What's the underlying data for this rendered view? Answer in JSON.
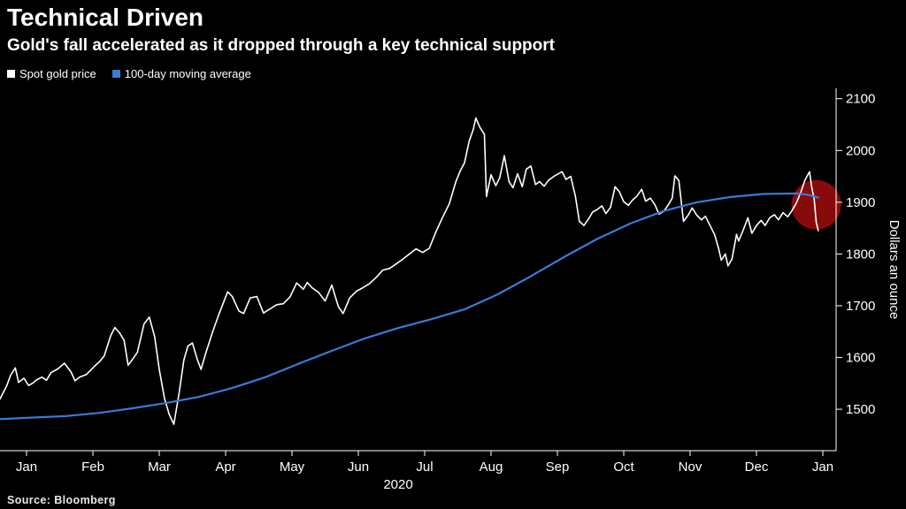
{
  "header": {
    "title": "Technical Driven",
    "subtitle": "Gold's fall accelerated as it dropped through a key technical support"
  },
  "legend": [
    {
      "label": "Spot gold price",
      "color": "#ffffff"
    },
    {
      "label": "100-day moving average",
      "color": "#3a7bd5"
    }
  ],
  "source_label": "Source: Bloomberg",
  "chart_data": {
    "type": "line",
    "title": "Technical Driven",
    "subtitle": "Gold's fall accelerated as it dropped through a key technical support",
    "ylabel": "Dollars an ounce",
    "x_axis_note": "x in months since Jan 1 2020 (0 = Jan 2020, 12 = Jan 2021)",
    "xlim": [
      0,
      12.6
    ],
    "ylim": [
      1420,
      2120
    ],
    "background": "#000000",
    "axis_color": "#ffffff",
    "grid": false,
    "legend_position": "top-left",
    "y_ticks": [
      1500,
      1600,
      1700,
      1800,
      1900,
      2000,
      2100
    ],
    "x_ticks": [
      {
        "pos": 0.4,
        "label": "Jan"
      },
      {
        "pos": 1.4,
        "label": "Feb"
      },
      {
        "pos": 2.4,
        "label": "Mar"
      },
      {
        "pos": 3.4,
        "label": "Apr"
      },
      {
        "pos": 4.4,
        "label": "May"
      },
      {
        "pos": 5.4,
        "label": "Jun"
      },
      {
        "pos": 6.4,
        "label": "Jul"
      },
      {
        "pos": 7.4,
        "label": "Aug"
      },
      {
        "pos": 8.4,
        "label": "Sep"
      },
      {
        "pos": 9.4,
        "label": "Oct"
      },
      {
        "pos": 10.4,
        "label": "Nov"
      },
      {
        "pos": 11.4,
        "label": "Dec"
      },
      {
        "pos": 12.4,
        "label": "Jan"
      }
    ],
    "year_label": {
      "text": "2020",
      "pos": 6.0
    },
    "annotation": {
      "type": "circle",
      "name": "technical-break-highlight",
      "x": 12.3,
      "y": 1895,
      "radius_px": 28,
      "color": "#9b0c0c",
      "opacity": 0.88
    },
    "series": [
      {
        "name": "Spot gold price",
        "color": "#ffffff",
        "stroke_width": 1.6,
        "points": [
          [
            0.0,
            1520
          ],
          [
            0.1,
            1545
          ],
          [
            0.16,
            1566
          ],
          [
            0.23,
            1580
          ],
          [
            0.28,
            1552
          ],
          [
            0.36,
            1560
          ],
          [
            0.43,
            1546
          ],
          [
            0.5,
            1551
          ],
          [
            0.55,
            1557
          ],
          [
            0.63,
            1562
          ],
          [
            0.7,
            1556
          ],
          [
            0.77,
            1571
          ],
          [
            0.87,
            1578
          ],
          [
            0.97,
            1589
          ],
          [
            1.07,
            1572
          ],
          [
            1.13,
            1555
          ],
          [
            1.2,
            1562
          ],
          [
            1.3,
            1567
          ],
          [
            1.43,
            1584
          ],
          [
            1.5,
            1592
          ],
          [
            1.57,
            1603
          ],
          [
            1.67,
            1643
          ],
          [
            1.73,
            1658
          ],
          [
            1.8,
            1648
          ],
          [
            1.87,
            1633
          ],
          [
            1.93,
            1585
          ],
          [
            2.0,
            1597
          ],
          [
            2.07,
            1610
          ],
          [
            2.17,
            1665
          ],
          [
            2.25,
            1678
          ],
          [
            2.33,
            1640
          ],
          [
            2.4,
            1577
          ],
          [
            2.48,
            1520
          ],
          [
            2.55,
            1490
          ],
          [
            2.62,
            1471
          ],
          [
            2.7,
            1532
          ],
          [
            2.77,
            1595
          ],
          [
            2.83,
            1622
          ],
          [
            2.9,
            1628
          ],
          [
            2.97,
            1597
          ],
          [
            3.03,
            1577
          ],
          [
            3.1,
            1608
          ],
          [
            3.2,
            1648
          ],
          [
            3.3,
            1684
          ],
          [
            3.43,
            1727
          ],
          [
            3.5,
            1718
          ],
          [
            3.6,
            1690
          ],
          [
            3.67,
            1685
          ],
          [
            3.77,
            1715
          ],
          [
            3.87,
            1718
          ],
          [
            3.97,
            1686
          ],
          [
            4.07,
            1694
          ],
          [
            4.17,
            1702
          ],
          [
            4.27,
            1704
          ],
          [
            4.37,
            1717
          ],
          [
            4.47,
            1744
          ],
          [
            4.57,
            1732
          ],
          [
            4.63,
            1745
          ],
          [
            4.7,
            1735
          ],
          [
            4.8,
            1726
          ],
          [
            4.9,
            1709
          ],
          [
            5.0,
            1740
          ],
          [
            5.1,
            1698
          ],
          [
            5.17,
            1685
          ],
          [
            5.27,
            1715
          ],
          [
            5.37,
            1728
          ],
          [
            5.47,
            1735
          ],
          [
            5.57,
            1743
          ],
          [
            5.67,
            1755
          ],
          [
            5.77,
            1769
          ],
          [
            5.87,
            1772
          ],
          [
            5.97,
            1781
          ],
          [
            6.07,
            1790
          ],
          [
            6.17,
            1800
          ],
          [
            6.27,
            1810
          ],
          [
            6.37,
            1803
          ],
          [
            6.47,
            1811
          ],
          [
            6.57,
            1843
          ],
          [
            6.67,
            1871
          ],
          [
            6.77,
            1897
          ],
          [
            6.87,
            1940
          ],
          [
            6.93,
            1959
          ],
          [
            7.0,
            1976
          ],
          [
            7.07,
            2018
          ],
          [
            7.13,
            2040
          ],
          [
            7.17,
            2063
          ],
          [
            7.23,
            2045
          ],
          [
            7.3,
            2031
          ],
          [
            7.33,
            1911
          ],
          [
            7.4,
            1953
          ],
          [
            7.47,
            1932
          ],
          [
            7.53,
            1947
          ],
          [
            7.6,
            1990
          ],
          [
            7.67,
            1940
          ],
          [
            7.73,
            1928
          ],
          [
            7.8,
            1955
          ],
          [
            7.87,
            1930
          ],
          [
            7.93,
            1964
          ],
          [
            8.0,
            1970
          ],
          [
            8.07,
            1934
          ],
          [
            8.13,
            1940
          ],
          [
            8.2,
            1931
          ],
          [
            8.27,
            1943
          ],
          [
            8.37,
            1952
          ],
          [
            8.47,
            1959
          ],
          [
            8.53,
            1944
          ],
          [
            8.6,
            1950
          ],
          [
            8.67,
            1912
          ],
          [
            8.73,
            1863
          ],
          [
            8.8,
            1855
          ],
          [
            8.87,
            1868
          ],
          [
            8.93,
            1881
          ],
          [
            9.0,
            1886
          ],
          [
            9.07,
            1893
          ],
          [
            9.13,
            1878
          ],
          [
            9.2,
            1890
          ],
          [
            9.27,
            1930
          ],
          [
            9.33,
            1921
          ],
          [
            9.4,
            1901
          ],
          [
            9.47,
            1894
          ],
          [
            9.53,
            1904
          ],
          [
            9.6,
            1912
          ],
          [
            9.67,
            1925
          ],
          [
            9.73,
            1902
          ],
          [
            9.8,
            1908
          ],
          [
            9.87,
            1895
          ],
          [
            9.93,
            1877
          ],
          [
            10.0,
            1882
          ],
          [
            10.07,
            1895
          ],
          [
            10.13,
            1908
          ],
          [
            10.17,
            1951
          ],
          [
            10.23,
            1942
          ],
          [
            10.3,
            1863
          ],
          [
            10.37,
            1875
          ],
          [
            10.43,
            1889
          ],
          [
            10.5,
            1875
          ],
          [
            10.57,
            1866
          ],
          [
            10.63,
            1873
          ],
          [
            10.7,
            1855
          ],
          [
            10.77,
            1837
          ],
          [
            10.83,
            1810
          ],
          [
            10.87,
            1788
          ],
          [
            10.93,
            1800
          ],
          [
            10.97,
            1777
          ],
          [
            11.03,
            1790
          ],
          [
            11.1,
            1838
          ],
          [
            11.13,
            1825
          ],
          [
            11.2,
            1846
          ],
          [
            11.27,
            1870
          ],
          [
            11.33,
            1840
          ],
          [
            11.4,
            1855
          ],
          [
            11.47,
            1865
          ],
          [
            11.53,
            1855
          ],
          [
            11.6,
            1870
          ],
          [
            11.67,
            1876
          ],
          [
            11.73,
            1866
          ],
          [
            11.8,
            1880
          ],
          [
            11.87,
            1872
          ],
          [
            11.93,
            1883
          ],
          [
            12.0,
            1898
          ],
          [
            12.07,
            1920
          ],
          [
            12.13,
            1943
          ],
          [
            12.2,
            1959
          ],
          [
            12.23,
            1930
          ],
          [
            12.27,
            1905
          ],
          [
            12.3,
            1862
          ],
          [
            12.33,
            1845
          ]
        ]
      },
      {
        "name": "100-day moving average",
        "color": "#3a7bd5",
        "stroke_width": 2.2,
        "points": [
          [
            0.0,
            1481
          ],
          [
            0.5,
            1484
          ],
          [
            1.0,
            1487
          ],
          [
            1.5,
            1493
          ],
          [
            2.0,
            1502
          ],
          [
            2.5,
            1512
          ],
          [
            3.0,
            1524
          ],
          [
            3.5,
            1541
          ],
          [
            4.0,
            1562
          ],
          [
            4.5,
            1588
          ],
          [
            5.0,
            1613
          ],
          [
            5.5,
            1637
          ],
          [
            6.0,
            1657
          ],
          [
            6.5,
            1674
          ],
          [
            7.0,
            1693
          ],
          [
            7.5,
            1722
          ],
          [
            8.0,
            1757
          ],
          [
            8.5,
            1794
          ],
          [
            9.0,
            1829
          ],
          [
            9.5,
            1859
          ],
          [
            10.0,
            1883
          ],
          [
            10.5,
            1900
          ],
          [
            11.0,
            1910
          ],
          [
            11.5,
            1916
          ],
          [
            12.0,
            1917
          ],
          [
            12.15,
            1915
          ],
          [
            12.33,
            1909
          ]
        ]
      }
    ]
  }
}
